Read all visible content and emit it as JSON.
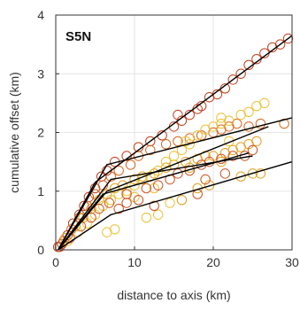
{
  "chart_data": {
    "type": "scatter",
    "title": "S5N",
    "xlabel": "distance to axis (km)",
    "ylabel": "cumulative offset (km)",
    "xlim": [
      0,
      30
    ],
    "ylim": [
      0,
      4
    ],
    "xticks": [
      0,
      10,
      20,
      30
    ],
    "yticks": [
      0,
      1,
      2,
      3,
      4
    ],
    "xtick_labels": [
      "0",
      "10",
      "20",
      "30"
    ],
    "ytick_labels": [
      "0",
      "1",
      "2",
      "3",
      "4"
    ],
    "grid": true,
    "colors": {
      "marker_palette": [
        "#e0a21e",
        "#d9681f",
        "#c0401e",
        "#ebc135",
        "#cc5425"
      ],
      "fit_line": "#000000",
      "grid": "#e6e6e6",
      "axis": "#333333"
    },
    "series": [
      {
        "color": "#c0401e",
        "points": [
          [
            0.3,
            0.05
          ],
          [
            0.8,
            0.1
          ],
          [
            1.5,
            0.25
          ],
          [
            2.2,
            0.45
          ],
          [
            3.0,
            0.6
          ],
          [
            3.6,
            0.75
          ],
          [
            4.2,
            0.9
          ],
          [
            5.0,
            1.05
          ],
          [
            5.8,
            1.25
          ],
          [
            6.5,
            1.35
          ],
          [
            7.5,
            1.5
          ],
          [
            9.0,
            1.6
          ],
          [
            10.5,
            1.75
          ],
          [
            12.0,
            1.85
          ],
          [
            13.5,
            1.95
          ],
          [
            15.0,
            2.1
          ],
          [
            16.0,
            2.2
          ],
          [
            17.0,
            2.3
          ],
          [
            18.5,
            2.45
          ],
          [
            19.5,
            2.6
          ],
          [
            20.5,
            2.65
          ],
          [
            21.5,
            2.75
          ],
          [
            22.5,
            2.9
          ],
          [
            23.5,
            3.0
          ],
          [
            24.5,
            3.15
          ],
          [
            25.5,
            3.25
          ],
          [
            26.5,
            3.35
          ],
          [
            27.5,
            3.45
          ],
          [
            28.5,
            3.5
          ],
          [
            29.5,
            3.6
          ],
          [
            15.5,
            2.3
          ],
          [
            18.0,
            2.4
          ]
        ]
      },
      {
        "color": "#d9681f",
        "points": [
          [
            1.0,
            0.15
          ],
          [
            2.0,
            0.35
          ],
          [
            3.0,
            0.55
          ],
          [
            4.0,
            0.75
          ],
          [
            5.0,
            0.95
          ],
          [
            6.0,
            1.1
          ],
          [
            7.0,
            1.25
          ],
          [
            8.0,
            1.35
          ],
          [
            9.5,
            1.45
          ],
          [
            10.5,
            1.6
          ],
          [
            12.0,
            1.7
          ],
          [
            14.0,
            1.8
          ],
          [
            15.5,
            1.85
          ],
          [
            17.0,
            1.9
          ],
          [
            18.5,
            1.95
          ],
          [
            20.0,
            2.0
          ],
          [
            21.0,
            2.05
          ],
          [
            22.0,
            2.1
          ],
          [
            23.0,
            2.15
          ],
          [
            24.5,
            2.1
          ],
          [
            26.0,
            2.15
          ],
          [
            29.0,
            2.15
          ]
        ]
      },
      {
        "color": "#e0a21e",
        "points": [
          [
            1.2,
            0.2
          ],
          [
            2.5,
            0.4
          ],
          [
            3.5,
            0.55
          ],
          [
            4.5,
            0.7
          ],
          [
            5.5,
            0.85
          ],
          [
            6.5,
            0.95
          ],
          [
            7.5,
            1.05
          ],
          [
            8.5,
            1.1
          ],
          [
            10.0,
            1.2
          ],
          [
            11.0,
            1.25
          ],
          [
            12.5,
            1.3
          ],
          [
            14.0,
            1.4
          ],
          [
            15.0,
            1.45
          ],
          [
            16.5,
            1.5
          ],
          [
            18.0,
            1.55
          ],
          [
            19.0,
            1.6
          ],
          [
            20.0,
            1.6
          ],
          [
            21.5,
            1.65
          ],
          [
            22.5,
            1.7
          ],
          [
            23.5,
            1.75
          ],
          [
            24.5,
            1.8
          ],
          [
            25.5,
            1.85
          ],
          [
            18.0,
            1.05
          ],
          [
            19.5,
            1.1
          ],
          [
            16.0,
            0.85
          ],
          [
            23.5,
            1.25
          ],
          [
            25.0,
            1.3
          ],
          [
            26.0,
            1.3
          ],
          [
            17.0,
            1.4
          ],
          [
            21.0,
            1.5
          ]
        ]
      },
      {
        "color": "#ebc135",
        "points": [
          [
            1.5,
            0.15
          ],
          [
            2.8,
            0.3
          ],
          [
            4.0,
            0.45
          ],
          [
            5.0,
            0.6
          ],
          [
            6.0,
            0.75
          ],
          [
            7.0,
            0.85
          ],
          [
            8.0,
            0.95
          ],
          [
            9.0,
            1.0
          ],
          [
            10.0,
            1.1
          ],
          [
            11.0,
            1.2
          ],
          [
            12.0,
            1.25
          ],
          [
            13.0,
            1.35
          ],
          [
            14.0,
            1.5
          ],
          [
            15.0,
            1.6
          ],
          [
            16.0,
            1.7
          ],
          [
            17.0,
            1.8
          ],
          [
            18.0,
            1.95
          ],
          [
            19.0,
            2.05
          ],
          [
            20.0,
            2.1
          ],
          [
            21.0,
            2.15
          ],
          [
            22.0,
            2.2
          ],
          [
            23.5,
            2.3
          ],
          [
            24.5,
            2.35
          ],
          [
            25.5,
            2.45
          ],
          [
            26.5,
            2.5
          ],
          [
            7.5,
            0.35
          ],
          [
            6.5,
            0.3
          ],
          [
            11.5,
            0.55
          ],
          [
            13.0,
            0.6
          ],
          [
            14.5,
            0.8
          ],
          [
            21.0,
            2.25
          ],
          [
            22.0,
            1.85
          ],
          [
            16.5,
            1.85
          ],
          [
            10.0,
            0.9
          ],
          [
            12.5,
            1.05
          ]
        ]
      },
      {
        "color": "#cc5425",
        "points": [
          [
            0.5,
            0.05
          ],
          [
            1.8,
            0.2
          ],
          [
            3.2,
            0.4
          ],
          [
            4.5,
            0.55
          ],
          [
            5.5,
            0.7
          ],
          [
            6.8,
            0.8
          ],
          [
            8.0,
            0.7
          ],
          [
            9.0,
            0.8
          ],
          [
            10.5,
            0.85
          ],
          [
            11.5,
            1.05
          ],
          [
            13.0,
            1.1
          ],
          [
            14.5,
            1.2
          ],
          [
            15.5,
            1.3
          ],
          [
            17.0,
            1.35
          ],
          [
            18.5,
            1.45
          ],
          [
            19.5,
            1.5
          ],
          [
            21.0,
            1.55
          ],
          [
            22.5,
            1.6
          ],
          [
            24.0,
            1.6
          ],
          [
            25.0,
            1.7
          ],
          [
            9.0,
            0.95
          ],
          [
            12.5,
            0.75
          ],
          [
            19.0,
            1.2
          ],
          [
            21.5,
            1.3
          ],
          [
            18.0,
            0.95
          ]
        ]
      }
    ],
    "fit_lines": [
      {
        "points": [
          [
            0.3,
            0.0
          ],
          [
            5.0,
            1.15
          ],
          [
            30.0,
            3.65
          ]
        ]
      },
      {
        "points": [
          [
            0.3,
            0.0
          ],
          [
            6.5,
            1.45
          ],
          [
            30.0,
            2.25
          ]
        ]
      },
      {
        "points": [
          [
            0.3,
            0.0
          ],
          [
            6.5,
            1.0
          ],
          [
            27.0,
            2.1
          ]
        ]
      },
      {
        "points": [
          [
            0.3,
            0.0
          ],
          [
            7.0,
            1.2
          ],
          [
            25.0,
            1.6
          ]
        ]
      },
      {
        "points": [
          [
            0.3,
            0.0
          ],
          [
            6.0,
            0.95
          ],
          [
            24.5,
            1.65
          ]
        ]
      },
      {
        "points": [
          [
            0.3,
            0.0
          ],
          [
            7.0,
            0.6
          ],
          [
            30.0,
            1.5
          ]
        ]
      }
    ]
  }
}
